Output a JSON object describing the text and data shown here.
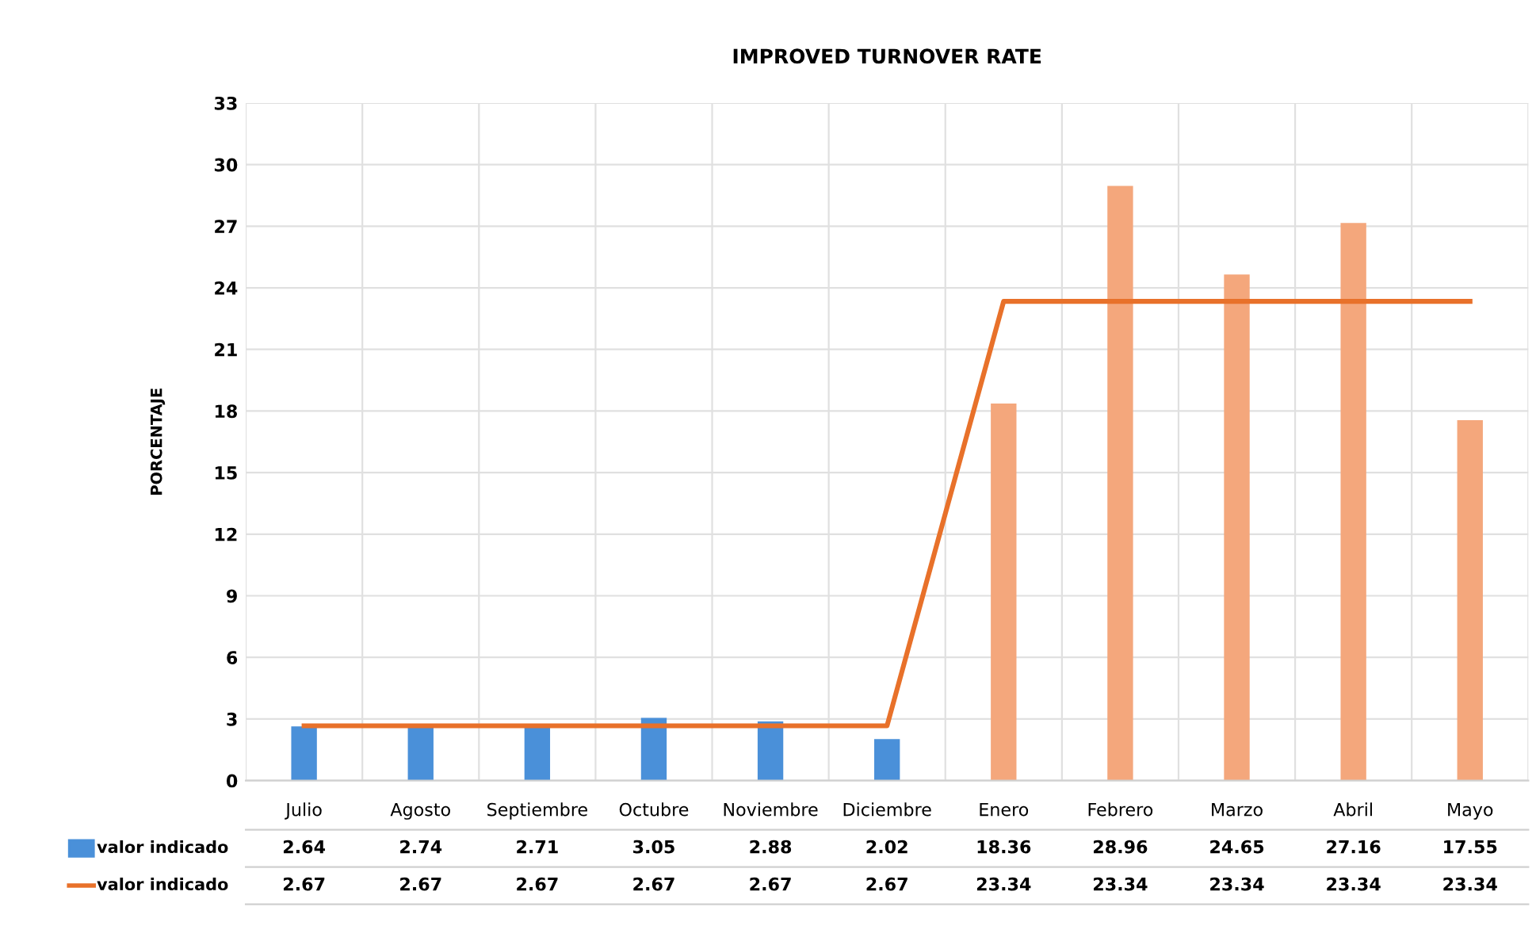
{
  "chart_data": {
    "type": "bar",
    "title": "IMPROVED TURNOVER RATE",
    "ylabel": "PORCENTAJE",
    "categories": [
      "Julio",
      "Agosto",
      "Septiembre",
      "Octubre",
      "Noviembre",
      "Diciembre",
      "Enero",
      "Febrero",
      "Marzo",
      "Abril",
      "Mayo"
    ],
    "series": [
      {
        "name": "valor indicado",
        "color": "#4a90d9",
        "colors": [
          "#4a90d9",
          "#4a90d9",
          "#4a90d9",
          "#4a90d9",
          "#4a90d9",
          "#4a90d9",
          "#f4a77c",
          "#f4a77c",
          "#f4a77c",
          "#f4a77c",
          "#f4a77c"
        ],
        "values": [
          2.64,
          2.74,
          2.71,
          3.05,
          2.88,
          2.02,
          18.36,
          28.96,
          24.65,
          27.16,
          17.55
        ]
      },
      {
        "name": "valor indicado",
        "type": "line",
        "color": "#e8712a",
        "values": [
          2.67,
          2.67,
          2.67,
          2.67,
          2.67,
          2.67,
          23.34,
          23.34,
          23.34,
          23.34,
          23.34
        ]
      }
    ],
    "ylim": [
      0,
      33
    ],
    "yticks": [
      0,
      3,
      6,
      9,
      12,
      15,
      18,
      21,
      24,
      27,
      30,
      33
    ],
    "grid": true,
    "data_labels": true,
    "legend": "bottom"
  }
}
